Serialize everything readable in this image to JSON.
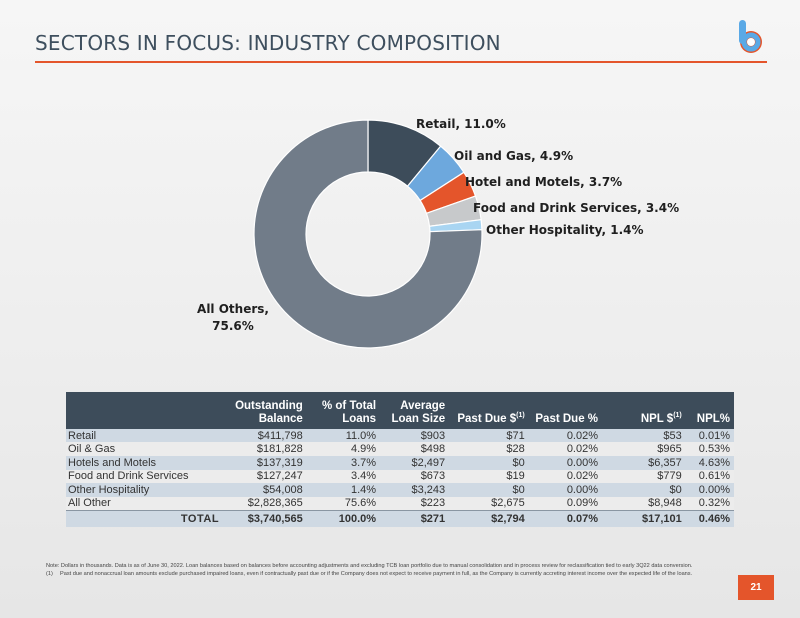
{
  "header": {
    "title": "SECTORS IN FOCUS: INDUSTRY COMPOSITION",
    "logo_icon": "b-logo-icon",
    "logo_letter": "b"
  },
  "chart_data": {
    "type": "pie",
    "title": "",
    "slices": [
      {
        "label": "Retail, 11.0%",
        "value": 11.0,
        "color": "#3d4c5a"
      },
      {
        "label": "Oil and Gas, 4.9%",
        "value": 4.9,
        "color": "#6da8dd"
      },
      {
        "label": "Hotel and Motels, 3.7%",
        "value": 3.7,
        "color": "#e4552b"
      },
      {
        "label": "Food and Drink Services, 3.4%",
        "value": 3.4,
        "color": "#c7c9cb"
      },
      {
        "label": "Other Hospitality, 1.4%",
        "value": 1.4,
        "color": "#a9d5f2"
      },
      {
        "label": "All Others,",
        "label2": "75.6%",
        "value": 75.6,
        "color": "#717c89"
      }
    ]
  },
  "table": {
    "headers": [
      {
        "line1": "",
        "line2": ""
      },
      {
        "line1": "Outstanding",
        "line2": "Balance"
      },
      {
        "line1": "% of Total",
        "line2": "Loans"
      },
      {
        "line1": "Average",
        "line2": "Loan Size"
      },
      {
        "line1": "",
        "line2": "Past Due $",
        "sup": "(1)"
      },
      {
        "line1": "",
        "line2": "Past Due %"
      },
      {
        "line1": "",
        "line2": "NPL $",
        "sup": "(1)"
      },
      {
        "line1": "",
        "line2": "NPL%"
      }
    ],
    "rows": [
      [
        "Retail",
        "$411,798",
        "11.0%",
        "$903",
        "$71",
        "0.02%",
        "$53",
        "0.01%"
      ],
      [
        "Oil & Gas",
        "$181,828",
        "4.9%",
        "$498",
        "$28",
        "0.02%",
        "$965",
        "0.53%"
      ],
      [
        "Hotels and Motels",
        "$137,319",
        "3.7%",
        "$2,497",
        "$0",
        "0.00%",
        "$6,357",
        "4.63%"
      ],
      [
        "Food and Drink Services",
        "$127,247",
        "3.4%",
        "$673",
        "$19",
        "0.02%",
        "$779",
        "0.61%"
      ],
      [
        "Other Hospitality",
        "$54,008",
        "1.4%",
        "$3,243",
        "$0",
        "0.00%",
        "$0",
        "0.00%"
      ],
      [
        "All Other",
        "$2,828,365",
        "75.6%",
        "$223",
        "$2,675",
        "0.09%",
        "$8,948",
        "0.32%"
      ]
    ],
    "total": [
      "TOTAL",
      "$3,740,565",
      "100.0%",
      "$271",
      "$2,794",
      "0.07%",
      "$17,101",
      "0.46%"
    ]
  },
  "notes": {
    "note_main": "Note: Dollars in thousands. Data is as of June 30, 2022. Loan balances based on balances before accounting adjustments and excluding TCB loan portfolio due to manual consolidation and in process review for reclassification tied to early 3Q22 data conversion.",
    "footnote_mark": "(1)",
    "footnote_text": "Past due and nonaccrual loan amounts exclude purchased impaired loans, even if contractually past due or if the Company does not expect to receive payment in full, as the Company is currently accreting interest income over the expected life of the loans."
  },
  "page_number": "21"
}
